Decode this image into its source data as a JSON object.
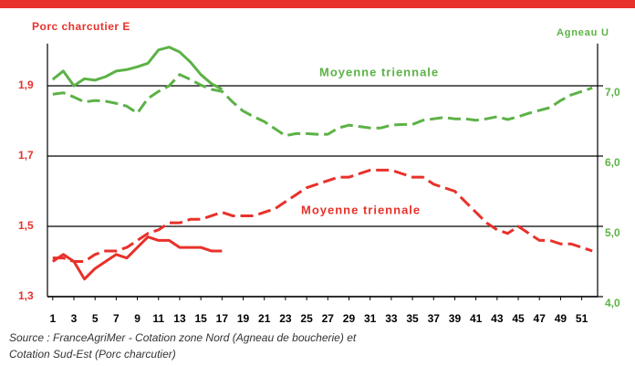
{
  "chart_data": {
    "type": "line",
    "left_axis_title": "Porc charcutier E",
    "right_axis_title": "Agneau U",
    "annotations": [
      "Moyenne triennale",
      "Moyenne triennale"
    ],
    "source": [
      "Source : FranceAgriMer - Cotation zone Nord (Agneau de boucherie) et",
      "Cotation Sud-Est (Porc charcutier)"
    ],
    "x": [
      1,
      2,
      3,
      4,
      5,
      6,
      7,
      8,
      9,
      10,
      11,
      12,
      13,
      14,
      15,
      16,
      17,
      18,
      19,
      20,
      21,
      22,
      23,
      24,
      25,
      26,
      27,
      28,
      29,
      30,
      31,
      32,
      33,
      34,
      35,
      36,
      37,
      38,
      39,
      40,
      41,
      42,
      43,
      44,
      45,
      46,
      47,
      48,
      49,
      50,
      51,
      52
    ],
    "xlim": [
      0.5,
      52.5
    ],
    "xticks": [
      1,
      3,
      5,
      7,
      9,
      11,
      13,
      15,
      17,
      19,
      21,
      23,
      25,
      27,
      29,
      31,
      33,
      35,
      37,
      39,
      41,
      43,
      45,
      47,
      49,
      51
    ],
    "ylim": [
      1.3,
      2.02
    ],
    "yticks": [
      {
        "value": 1.3,
        "label": "1,3"
      },
      {
        "value": 1.5,
        "label": "1,5"
      },
      {
        "value": 1.7,
        "label": "1,7"
      },
      {
        "value": 1.9,
        "label": "1,9"
      }
    ],
    "y2lim": [
      4.0,
      7.6
    ],
    "y2ticks": [
      {
        "value": 4.0,
        "label": "4,0"
      },
      {
        "value": 5.0,
        "label": "5,0"
      },
      {
        "value": 6.0,
        "label": "6,0"
      },
      {
        "value": 7.0,
        "label": "7,0"
      }
    ],
    "grid": true,
    "series": [
      {
        "color": "#e8312a",
        "dashed": false,
        "values": [
          1.4,
          1.42,
          1.4,
          1.35,
          1.38,
          1.4,
          1.42,
          1.41,
          1.44,
          1.47,
          1.46,
          1.46,
          1.44,
          1.44,
          1.44,
          1.43,
          1.43,
          null,
          null,
          null,
          null,
          null,
          null,
          null,
          null,
          null,
          null,
          null,
          null,
          null,
          null,
          null,
          null,
          null,
          null,
          null,
          null,
          null,
          null,
          null,
          null,
          null,
          null,
          null,
          null,
          null,
          null,
          null,
          null,
          null,
          null,
          null
        ]
      },
      {
        "color": "#e8312a",
        "dashed": true,
        "values": [
          1.41,
          1.41,
          1.4,
          1.4,
          1.42,
          1.43,
          1.43,
          1.44,
          1.46,
          1.48,
          1.49,
          1.51,
          1.51,
          1.52,
          1.52,
          1.53,
          1.54,
          1.53,
          1.53,
          1.53,
          1.54,
          1.55,
          1.57,
          1.59,
          1.61,
          1.62,
          1.63,
          1.64,
          1.64,
          1.65,
          1.66,
          1.66,
          1.66,
          1.65,
          1.64,
          1.64,
          1.62,
          1.61,
          1.6,
          1.57,
          1.54,
          1.51,
          1.49,
          1.48,
          1.5,
          1.48,
          1.46,
          1.46,
          1.45,
          1.45,
          1.44,
          1.43
        ]
      },
      {
        "color": "#5cb246",
        "dashed": false,
        "axis": "y2",
        "values": [
          7.09,
          7.21,
          7.0,
          7.1,
          7.08,
          7.13,
          7.21,
          7.23,
          7.27,
          7.32,
          7.51,
          7.55,
          7.48,
          7.34,
          7.16,
          7.03,
          6.95,
          null,
          null,
          null,
          null,
          null,
          null,
          null,
          null,
          null,
          null,
          null,
          null,
          null,
          null,
          null,
          null,
          null,
          null,
          null,
          null,
          null,
          null,
          null,
          null,
          null,
          null,
          null,
          null,
          null,
          null,
          null,
          null,
          null,
          null,
          null
        ]
      },
      {
        "color": "#5cb246",
        "dashed": true,
        "axis": "y2",
        "values": [
          6.88,
          6.9,
          6.84,
          6.77,
          6.79,
          6.78,
          6.75,
          6.71,
          6.61,
          6.82,
          6.92,
          7.0,
          7.16,
          7.09,
          7.01,
          6.95,
          6.92,
          6.77,
          6.64,
          6.56,
          6.49,
          6.39,
          6.29,
          6.32,
          6.32,
          6.31,
          6.31,
          6.4,
          6.44,
          6.42,
          6.4,
          6.4,
          6.44,
          6.45,
          6.45,
          6.51,
          6.53,
          6.55,
          6.53,
          6.53,
          6.51,
          6.53,
          6.56,
          6.52,
          6.56,
          6.61,
          6.65,
          6.69,
          6.79,
          6.87,
          6.92,
          6.97
        ]
      }
    ]
  }
}
